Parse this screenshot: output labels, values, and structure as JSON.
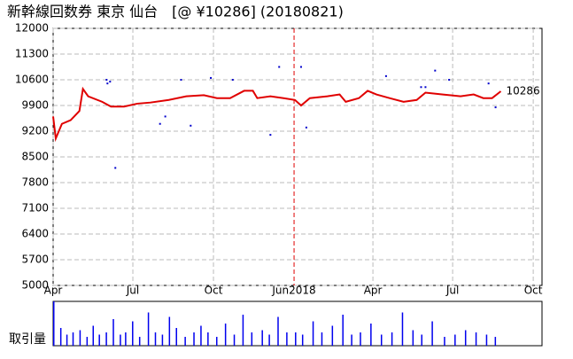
{
  "chart_data": [
    {
      "type": "line",
      "title": "新幹線回数券 東京 仙台　[@ ¥10286] (20180821)",
      "xlim": [
        0,
        558
      ],
      "xticks": [
        {
          "value": 0,
          "label": "Apr"
        },
        {
          "value": 91,
          "label": "Jul"
        },
        {
          "value": 183,
          "label": "Oct"
        },
        {
          "value": 275,
          "label": "Jun2018"
        },
        {
          "value": 365,
          "label": "Apr"
        },
        {
          "value": 456,
          "label": "Jul"
        },
        {
          "value": 548,
          "label": "Oct"
        }
      ],
      "ylim": [
        5000,
        12000
      ],
      "yticks": [
        12000,
        11300,
        10600,
        9900,
        9200,
        8500,
        7800,
        7100,
        6400,
        5700,
        5000
      ],
      "grid": true,
      "divider_tick": 3,
      "divider_color": "#e00000",
      "series": [
        {
          "name": "price",
          "color": "#e00000",
          "x": [
            0,
            3,
            10,
            20,
            30,
            34,
            40,
            56,
            66,
            81,
            96,
            111,
            132,
            152,
            172,
            187,
            202,
            218,
            228,
            233,
            248,
            263,
            276,
            283,
            293,
            313,
            327,
            334,
            349,
            359,
            369,
            384,
            400,
            415,
            425,
            445,
            465,
            480,
            491,
            501,
            511
          ],
          "values": [
            9600,
            9000,
            9400,
            9500,
            9750,
            10350,
            10150,
            10000,
            9870,
            9870,
            9950,
            9980,
            10050,
            10150,
            10180,
            10100,
            10100,
            10300,
            10300,
            10100,
            10150,
            10100,
            10050,
            9900,
            10100,
            10150,
            10200,
            10000,
            10100,
            10300,
            10200,
            10100,
            10000,
            10050,
            10250,
            10200,
            10150,
            10200,
            10100,
            10100,
            10286
          ]
        },
        {
          "name": "bids",
          "color": "#0000cc",
          "points": true,
          "x": [
            62,
            65,
            61,
            71,
            122,
            128,
            146,
            157,
            180,
            205,
            248,
            258,
            283,
            289,
            380,
            420,
            425,
            436,
            452,
            505,
            497
          ],
          "values": [
            10500,
            10550,
            10600,
            8200,
            9400,
            9600,
            10600,
            9350,
            10650,
            10600,
            9100,
            10950,
            10950,
            9300,
            10700,
            10400,
            10400,
            10850,
            10600,
            9850,
            10500
          ]
        }
      ]
    },
    {
      "type": "bar",
      "label": "取引量",
      "color": "#0000ee",
      "xlim": [
        0,
        558
      ],
      "ylim": [
        0,
        100
      ],
      "x": [
        0,
        8,
        15,
        22,
        30,
        38,
        45,
        52,
        60,
        68,
        76,
        82,
        90,
        98,
        108,
        116,
        124,
        132,
        140,
        150,
        160,
        168,
        176,
        186,
        196,
        206,
        216,
        226,
        238,
        246,
        256,
        266,
        276,
        284,
        296,
        306,
        318,
        330,
        340,
        350,
        362,
        374,
        386,
        398,
        410,
        420,
        432,
        446,
        458,
        470,
        482,
        494,
        504
      ],
      "values": [
        100,
        40,
        25,
        30,
        35,
        20,
        45,
        25,
        30,
        60,
        25,
        30,
        55,
        20,
        75,
        30,
        25,
        65,
        40,
        20,
        30,
        45,
        30,
        20,
        50,
        25,
        70,
        30,
        35,
        25,
        65,
        30,
        30,
        25,
        55,
        30,
        45,
        70,
        25,
        30,
        50,
        25,
        30,
        75,
        35,
        25,
        55,
        20,
        25,
        35,
        30,
        25,
        20
      ]
    }
  ]
}
